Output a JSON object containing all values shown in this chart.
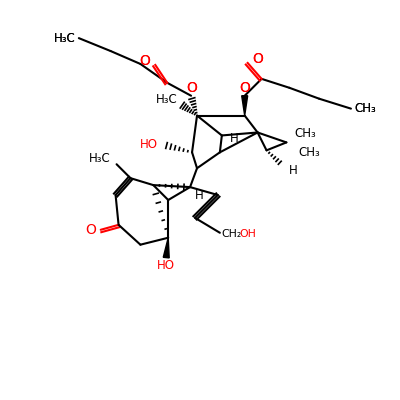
{
  "bg": "#ffffff",
  "black": "#000000",
  "red": "#ff0000",
  "figsize": [
    4.0,
    4.0
  ],
  "dpi": 100
}
